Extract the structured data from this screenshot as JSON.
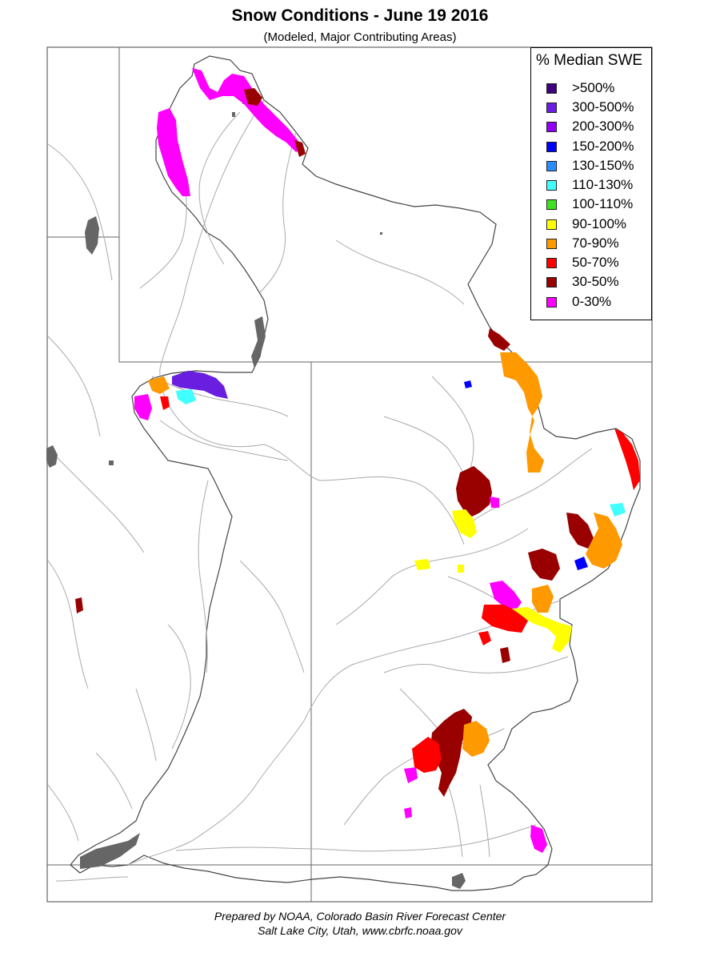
{
  "title": "Snow Conditions - June 19 2016",
  "subtitle": "(Modeled, Major Contributing Areas)",
  "legend": {
    "title": "% Median SWE",
    "items": [
      {
        "label": ">500%",
        "color": "#3f0080"
      },
      {
        "label": "300-500%",
        "color": "#6a1fe0"
      },
      {
        "label": "200-300%",
        "color": "#8f00ff"
      },
      {
        "label": "150-200%",
        "color": "#0000ff"
      },
      {
        "label": "130-150%",
        "color": "#2a8cff"
      },
      {
        "label": "110-130%",
        "color": "#40ffff"
      },
      {
        "label": "100-110%",
        "color": "#40e020"
      },
      {
        "label": "90-100%",
        "color": "#ffff00"
      },
      {
        "label": "70-90%",
        "color": "#ff9900"
      },
      {
        "label": "50-70%",
        "color": "#ff0000"
      },
      {
        "label": "30-50%",
        "color": "#990000"
      },
      {
        "label": "0-30%",
        "color": "#ff00ff"
      }
    ]
  },
  "colors": {
    "border": "#444444",
    "rivers": "#aaaaaa",
    "lakes": "#666666"
  },
  "footer": {
    "line1": "Prepared by NOAA, Colorado Basin River Forecast Center",
    "line2": "Salt Lake City, Utah, www.cbrfc.noaa.gov"
  }
}
